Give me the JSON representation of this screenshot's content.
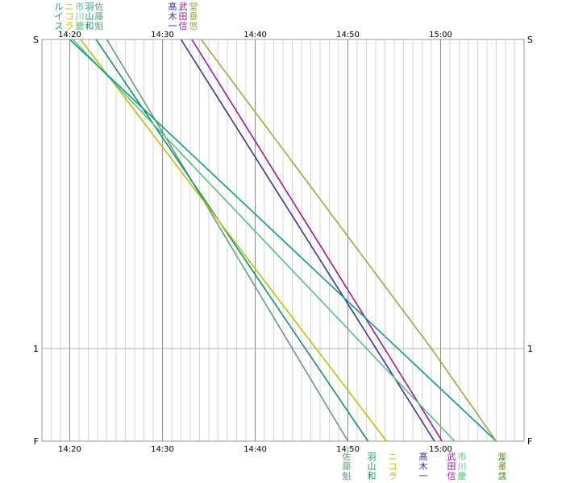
{
  "chart_data": {
    "type": "line",
    "x_axis": {
      "unit": "time",
      "range": [
        "14:17",
        "15:09"
      ],
      "tick_labels": [
        "14:20",
        "14:30",
        "14:40",
        "14:50",
        "15:00"
      ],
      "minor_grid_minutes": 1,
      "major_grid_minutes": 10
    },
    "y_axis": {
      "lanes": [
        "S",
        "1",
        "F"
      ],
      "range": [
        0,
        1.3
      ],
      "direction": "downward"
    },
    "grid": true,
    "series": [
      {
        "name": "佐藤魁",
        "color": "#6a9a78",
        "points": [
          [
            "14:24:00",
            0
          ],
          [
            "14:50:00",
            1.3
          ]
        ],
        "finish_time": "14:50:00"
      },
      {
        "name": "羽山和",
        "color": "#188c70",
        "points": [
          [
            "14:22:50",
            0
          ],
          [
            "14:52:10",
            1.3
          ]
        ],
        "finish_time": "14:52:10"
      },
      {
        "name": "ニコラ",
        "color": "#b8c010",
        "points": [
          [
            "14:21:10",
            0
          ],
          [
            "14:54:10",
            1.3
          ]
        ],
        "finish_time": "14:54:10"
      },
      {
        "name": "髙木一",
        "color": "#3a3490",
        "points": [
          [
            "14:32:00",
            0
          ],
          [
            "14:59:20",
            1.3
          ]
        ],
        "finish_time": "14:59:20"
      },
      {
        "name": "武田信",
        "color": "#9a1898",
        "points": [
          [
            "14:33:10",
            0
          ],
          [
            "15:00:10",
            1.3
          ]
        ],
        "finish_time": "15:00:10"
      },
      {
        "name": "市川慶",
        "color": "#58c080",
        "points": [
          [
            "14:20:20",
            0
          ],
          [
            "15:01:30",
            1.3
          ]
        ],
        "finish_time": "15:01:30"
      },
      {
        "name": "ルイス",
        "color": "#109880",
        "points": [
          [
            "14:20:00",
            0
          ],
          [
            "15:06:00",
            1.3
          ]
        ],
        "finish_time": "15:06:00"
      },
      {
        "name": "堂垂悠",
        "color": "#9aa848",
        "points": [
          [
            "14:34:10",
            0
          ],
          [
            "14:59:00",
            1.0
          ],
          [
            "15:06:00",
            1.3
          ]
        ],
        "finish_time": "15:06:00"
      }
    ]
  },
  "header": {
    "runners": [
      {
        "chars": [
          "ル",
          "イ",
          "ス"
        ],
        "color": "#109880"
      },
      {
        "chars": [
          "ニ",
          "コ",
          "ラ"
        ],
        "color": "#b8c010"
      },
      {
        "chars": [
          "市",
          "川",
          "慶"
        ],
        "color": "#58c080"
      },
      {
        "chars": [
          "羽",
          "山",
          "和"
        ],
        "color": "#188c70"
      },
      {
        "chars": [
          "佐",
          "藤",
          "魁"
        ],
        "color": "#6a9a78"
      },
      {
        "chars": [
          "髙",
          "木",
          "一"
        ],
        "color": "#3a3490"
      },
      {
        "chars": [
          "武",
          "田",
          "信"
        ],
        "color": "#9a1898"
      },
      {
        "chars": [
          "堂",
          "垂",
          "悠"
        ],
        "color": "#9aa848"
      }
    ]
  },
  "footer": {
    "runners": [
      {
        "chars": [
          "佐",
          "藤",
          "魁"
        ],
        "color": "#6a9a78"
      },
      {
        "chars": [
          "羽",
          "山",
          "和"
        ],
        "color": "#188c70"
      },
      {
        "chars": [
          "ニ",
          "コ",
          "ラ"
        ],
        "color": "#b8c010"
      },
      {
        "chars": [
          "髙",
          "木",
          "一"
        ],
        "color": "#3a3490"
      },
      {
        "chars": [
          "武",
          "田",
          "信"
        ],
        "color": "#9a1898"
      },
      {
        "chars": [
          "市",
          "川",
          "慶"
        ],
        "color": "#58c080"
      },
      {
        "chars": [
          "ル",
          "イ",
          "ス"
        ],
        "color": "#109880"
      },
      {
        "chars": [
          "堂",
          "垂",
          "悠"
        ],
        "color": "#9aa848"
      }
    ]
  }
}
